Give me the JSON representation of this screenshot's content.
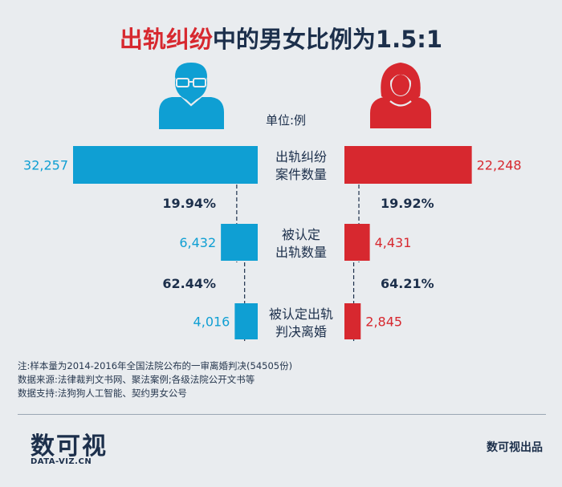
{
  "title": {
    "highlight": "出轨纠纷",
    "rest": "中的男女比例为1.5:1"
  },
  "unit": "单位:例",
  "colors": {
    "male": "#0f9fd3",
    "female": "#d7282f",
    "text_dark": "#1c2f4b",
    "background": "#e9ecef"
  },
  "icons": {
    "male": "male-avatar-icon",
    "female": "female-avatar-icon"
  },
  "chart_data": {
    "type": "bar",
    "orientation": "butterfly",
    "categories": [
      "出轨纠纷\n案件数量",
      "被认定\n出轨数量",
      "被认定出轨\n判决离婚"
    ],
    "category_lines": [
      [
        "出轨纠纷",
        "案件数量"
      ],
      [
        "被认定",
        "出轨数量"
      ],
      [
        "被认定出轨",
        "判决离婚"
      ]
    ],
    "series": [
      {
        "name": "男",
        "values": [
          32257,
          6432,
          4016
        ],
        "labels": [
          "32,257",
          "6,432",
          "4,016"
        ]
      },
      {
        "name": "女",
        "values": [
          22248,
          4431,
          2845
        ],
        "labels": [
          "22,248",
          "4,431",
          "2,845"
        ]
      }
    ],
    "ratios": [
      {
        "male": "19.94%",
        "female": "19.92%"
      },
      {
        "male": "62.44%",
        "female": "64.21%"
      }
    ]
  },
  "notes": [
    "注:样本量为2014-2016年全国法院公布的一审离婚判决(54505份)",
    "数据来源:法律裁判文书网、聚法案例;各级法院公开文书等",
    "数据支持:法狗狗人工智能、契约男女公号"
  ],
  "logo": {
    "cn": "数可视",
    "en": "DATA-VIZ.CN"
  },
  "producer": "数可视出品"
}
